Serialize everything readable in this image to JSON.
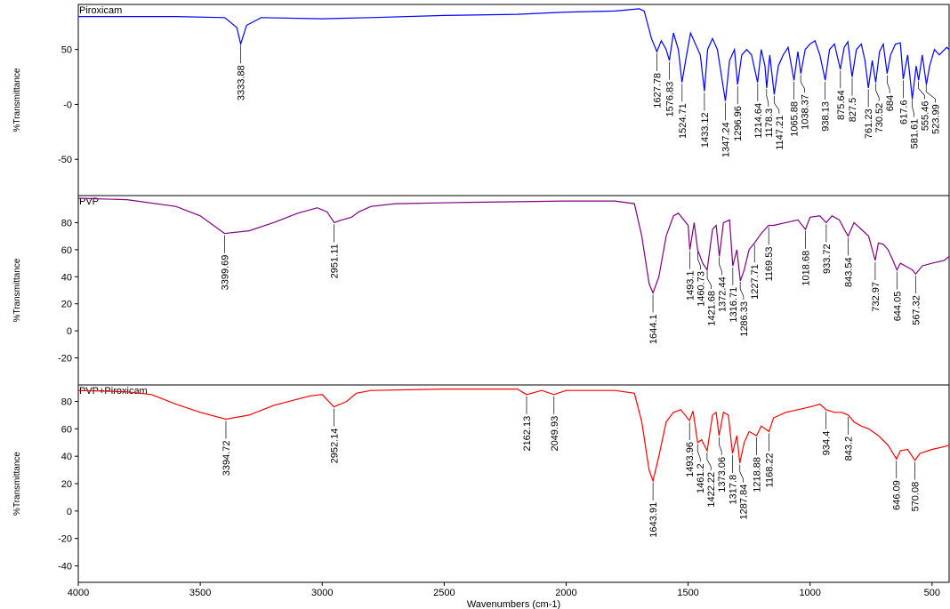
{
  "chart_data": [
    {
      "type": "line",
      "name": "Piroxicam",
      "color": "#0000ff",
      "ylabel": "%Transmittance",
      "xlim": [
        4000,
        430
      ],
      "ylim": [
        -83,
        91
      ],
      "yticks": [
        -50,
        {
          "value": 0,
          "label": "-0"
        },
        50
      ],
      "x": [
        4000,
        3600,
        3400,
        3350,
        3334,
        3310,
        3250,
        3000,
        2800,
        2500,
        2200,
        2000,
        1800,
        1700,
        1680,
        1650,
        1628,
        1610,
        1590,
        1577,
        1560,
        1540,
        1525,
        1510,
        1490,
        1470,
        1450,
        1433,
        1420,
        1400,
        1380,
        1347,
        1330,
        1310,
        1297,
        1280,
        1260,
        1240,
        1215,
        1200,
        1185,
        1178,
        1165,
        1147,
        1130,
        1110,
        1090,
        1066,
        1050,
        1038,
        1020,
        1000,
        980,
        960,
        938,
        920,
        900,
        876,
        860,
        845,
        828,
        810,
        790,
        775,
        761,
        745,
        731,
        715,
        700,
        684,
        670,
        650,
        630,
        618,
        600,
        581,
        565,
        555,
        540,
        523,
        510,
        490,
        470,
        440,
        430
      ],
      "values": [
        80,
        80,
        79,
        70,
        55,
        72,
        79,
        78,
        79,
        81,
        82,
        84,
        85,
        87,
        85,
        60,
        48,
        58,
        50,
        40,
        65,
        50,
        20,
        40,
        65,
        55,
        45,
        12,
        50,
        60,
        50,
        3,
        40,
        50,
        18,
        45,
        50,
        45,
        20,
        50,
        35,
        15,
        45,
        9,
        35,
        45,
        52,
        22,
        48,
        28,
        50,
        55,
        58,
        45,
        22,
        50,
        55,
        32,
        52,
        57,
        25,
        50,
        55,
        40,
        15,
        40,
        20,
        48,
        55,
        28,
        45,
        55,
        56,
        23,
        45,
        5,
        35,
        22,
        45,
        18,
        35,
        50,
        45,
        52,
        50
      ],
      "peaks": [
        3333.88,
        1627.78,
        1576.83,
        1524.71,
        1433.12,
        1347.24,
        1296.96,
        1214.64,
        1178.3,
        1147.21,
        1065.88,
        1038.37,
        938.13,
        875.64,
        827.5,
        761.23,
        730.52,
        684.0,
        617.6,
        581.61,
        555.46,
        523.99
      ]
    },
    {
      "type": "line",
      "name": "PVP",
      "color": "#800080",
      "ylabel": "%Transmittance",
      "xlim": [
        4000,
        430
      ],
      "ylim": [
        -40,
        100
      ],
      "yticks": [
        -20,
        0,
        20,
        40,
        60,
        80
      ],
      "x": [
        4000,
        3800,
        3600,
        3500,
        3400,
        3300,
        3200,
        3100,
        3020,
        2980,
        2951,
        2920,
        2880,
        2850,
        2800,
        2700,
        2400,
        2000,
        1800,
        1720,
        1690,
        1660,
        1644,
        1620,
        1590,
        1560,
        1540,
        1500,
        1493,
        1475,
        1461,
        1440,
        1422,
        1400,
        1385,
        1372,
        1355,
        1330,
        1317,
        1300,
        1286,
        1270,
        1250,
        1228,
        1200,
        1170,
        1150,
        1100,
        1050,
        1019,
        1000,
        960,
        934,
        910,
        880,
        860,
        844,
        820,
        790,
        760,
        733,
        720,
        700,
        680,
        660,
        644,
        630,
        600,
        580,
        567,
        540,
        500,
        450,
        430
      ],
      "values": [
        98,
        97,
        92,
        85,
        72,
        74,
        80,
        87,
        91,
        88,
        80,
        82,
        84,
        88,
        92,
        94,
        95,
        96,
        96,
        94,
        70,
        35,
        28,
        40,
        70,
        85,
        87,
        78,
        60,
        80,
        60,
        50,
        45,
        75,
        78,
        55,
        80,
        82,
        48,
        60,
        37,
        45,
        60,
        65,
        72,
        78,
        78,
        80,
        82,
        75,
        84,
        85,
        80,
        85,
        82,
        75,
        70,
        80,
        75,
        70,
        52,
        65,
        64,
        60,
        52,
        45,
        50,
        47,
        45,
        42,
        48,
        50,
        52,
        55
      ],
      "peaks": [
        3399.69,
        2951.11,
        1644.1,
        1493.1,
        1460.73,
        1421.68,
        1372.44,
        1316.71,
        1286.33,
        1227.71,
        1169.53,
        1018.68,
        933.72,
        843.54,
        732.97,
        644.05,
        567.32
      ]
    },
    {
      "type": "line",
      "name": "PVP+Piroxicam",
      "color": "#ff0000",
      "ylabel": "%Transmittance",
      "xlim": [
        4000,
        430
      ],
      "ylim": [
        -52,
        92
      ],
      "yticks": [
        -40,
        -20,
        0,
        20,
        40,
        60,
        80
      ],
      "xticks": [
        4000,
        3500,
        3000,
        2500,
        2000,
        1500,
        1000,
        500
      ],
      "xlabel": "Wavenumbers (cm-1)",
      "x": [
        4000,
        3800,
        3700,
        3600,
        3500,
        3395,
        3300,
        3200,
        3050,
        3000,
        2952,
        2900,
        2860,
        2800,
        2500,
        2200,
        2162,
        2100,
        2050,
        2000,
        1800,
        1720,
        1690,
        1660,
        1644,
        1620,
        1590,
        1560,
        1530,
        1494,
        1480,
        1461,
        1445,
        1422,
        1400,
        1385,
        1373,
        1355,
        1335,
        1318,
        1300,
        1288,
        1270,
        1250,
        1219,
        1200,
        1168,
        1150,
        1100,
        1050,
        1000,
        960,
        934,
        900,
        870,
        843,
        820,
        790,
        760,
        720,
        680,
        646,
        630,
        600,
        570,
        550,
        500,
        450,
        430
      ],
      "values": [
        88,
        87,
        85,
        78,
        72,
        67,
        70,
        77,
        84,
        85,
        76,
        80,
        86,
        88,
        89,
        89,
        85,
        88,
        85,
        88,
        88,
        86,
        65,
        30,
        22,
        40,
        65,
        72,
        74,
        66,
        73,
        50,
        52,
        44,
        70,
        72,
        55,
        72,
        70,
        42,
        55,
        35,
        50,
        58,
        55,
        62,
        58,
        68,
        72,
        74,
        76,
        78,
        74,
        72,
        72,
        70,
        65,
        62,
        60,
        55,
        48,
        38,
        44,
        45,
        37,
        42,
        45,
        47,
        48
      ],
      "peaks": [
        3394.72,
        2952.14,
        2162.13,
        2049.93,
        1643.91,
        1493.96,
        1461.2,
        1422.22,
        1373.06,
        1317.8,
        1287.84,
        1218.88,
        1168.22,
        934.4,
        843.2,
        646.09,
        570.08
      ]
    }
  ]
}
